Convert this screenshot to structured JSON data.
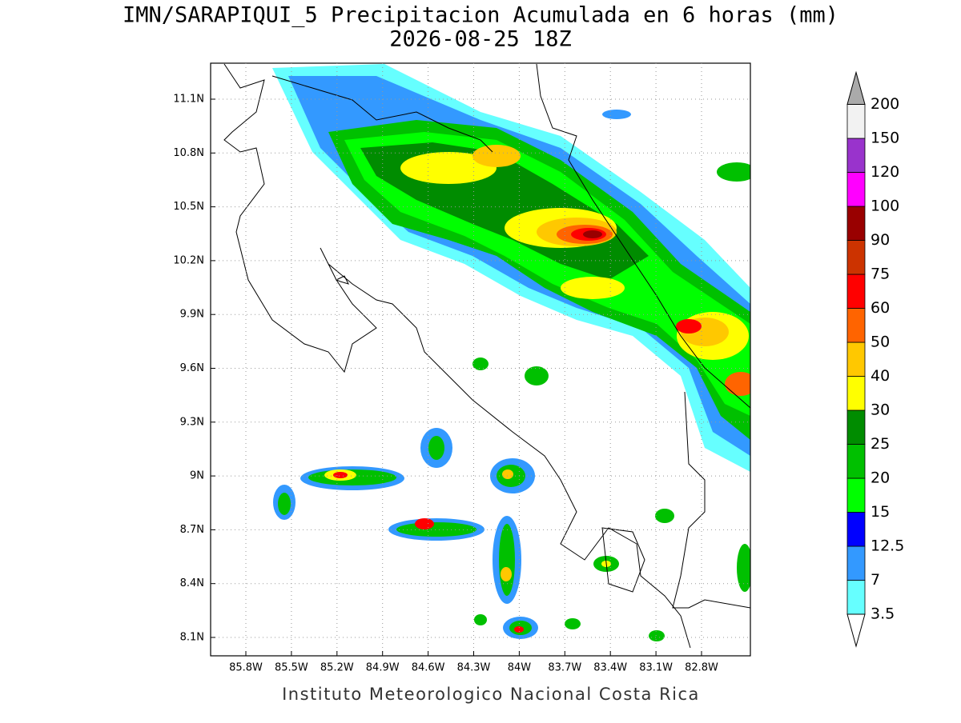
{
  "map": {
    "title": "IMN/SARAPIQUI_5 Precipitacion Acumulada en 6 horas (mm)",
    "subtitle": "2026-08-25 18Z",
    "lat_ticks": [
      "11.1N",
      "10.8N",
      "10.5N",
      "10.2N",
      "9.9N",
      "9.6N",
      "9.3N",
      "9N",
      "8.7N",
      "8.4N",
      "8.1N"
    ],
    "lon_ticks": [
      "85.8W",
      "85.5W",
      "85.2W",
      "84.9W",
      "84.6W",
      "84.3W",
      "84W",
      "83.7W",
      "83.4W",
      "83.1W",
      "82.8W"
    ],
    "footer": "Instituto Meteorologico Nacional Costa Rica"
  },
  "colorbar": {
    "levels": [
      3.5,
      7,
      12.5,
      15,
      20,
      25,
      30,
      40,
      50,
      60,
      75,
      90,
      100,
      120,
      150,
      200
    ],
    "colors": [
      "#66ffff",
      "#3399ff",
      "#0000ff",
      "#00ff00",
      "#00c000",
      "#008c00",
      "#ffff00",
      "#ffc800",
      "#ff6400",
      "#ff0000",
      "#cc3300",
      "#990000",
      "#ff00ff",
      "#9933cc",
      "#f2f2f2"
    ],
    "under_color": "#ffffff",
    "over_color": "#aaaaaa"
  }
}
